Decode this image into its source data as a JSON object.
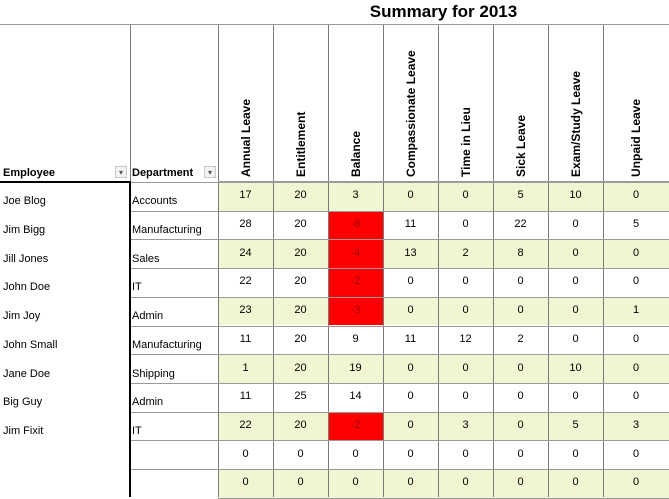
{
  "title": "Summary for 2013",
  "headers": {
    "employee": "Employee",
    "department": "Department",
    "leave_columns": [
      "Annual Leave",
      "Entitlement",
      "Balance",
      "Compassionate Leave",
      "Time in Lieu",
      "Sick Leave",
      "Exam/Study Leave",
      "Unpaid Leave"
    ]
  },
  "filter_icon": "dropdown-arrow-icon",
  "colors": {
    "row_highlight": "#f0f6d2",
    "negative_balance": "#ff0000",
    "gridline": "#9a9a9a"
  },
  "rows": [
    {
      "employee": "Joe Blog",
      "department": "Accounts",
      "values": [
        "17",
        "20",
        "3",
        "0",
        "0",
        "5",
        "10",
        "0"
      ],
      "negative": false
    },
    {
      "employee": "Jim Bigg",
      "department": "Manufacturing",
      "values": [
        "28",
        "20",
        "-8",
        "11",
        "0",
        "22",
        "0",
        "5"
      ],
      "negative": true
    },
    {
      "employee": "Jill Jones",
      "department": "Sales",
      "values": [
        "24",
        "20",
        "-4",
        "13",
        "2",
        "8",
        "0",
        "0"
      ],
      "negative": true
    },
    {
      "employee": "John Doe",
      "department": "IT",
      "values": [
        "22",
        "20",
        "-2",
        "0",
        "0",
        "0",
        "0",
        "0"
      ],
      "negative": true
    },
    {
      "employee": "Jim Joy",
      "department": "Admin",
      "values": [
        "23",
        "20",
        "-3",
        "0",
        "0",
        "0",
        "0",
        "1"
      ],
      "negative": true
    },
    {
      "employee": "John Small",
      "department": "Manufacturing",
      "values": [
        "11",
        "20",
        "9",
        "11",
        "12",
        "2",
        "0",
        "0"
      ],
      "negative": false
    },
    {
      "employee": "Jane Doe",
      "department": "Shipping",
      "values": [
        "1",
        "20",
        "19",
        "0",
        "0",
        "0",
        "10",
        "0"
      ],
      "negative": false
    },
    {
      "employee": "Big Guy",
      "department": "Admin",
      "values": [
        "11",
        "25",
        "14",
        "0",
        "0",
        "0",
        "0",
        "0"
      ],
      "negative": false
    },
    {
      "employee": "Jim Fixit",
      "department": "IT",
      "values": [
        "22",
        "20",
        "-2",
        "0",
        "3",
        "0",
        "5",
        "3"
      ],
      "negative": true
    },
    {
      "employee": "",
      "department": "",
      "values": [
        "0",
        "0",
        "0",
        "0",
        "0",
        "0",
        "0",
        "0"
      ],
      "negative": false
    },
    {
      "employee": "",
      "department": "",
      "values": [
        "0",
        "0",
        "0",
        "0",
        "0",
        "0",
        "0",
        "0"
      ],
      "negative": false
    }
  ]
}
